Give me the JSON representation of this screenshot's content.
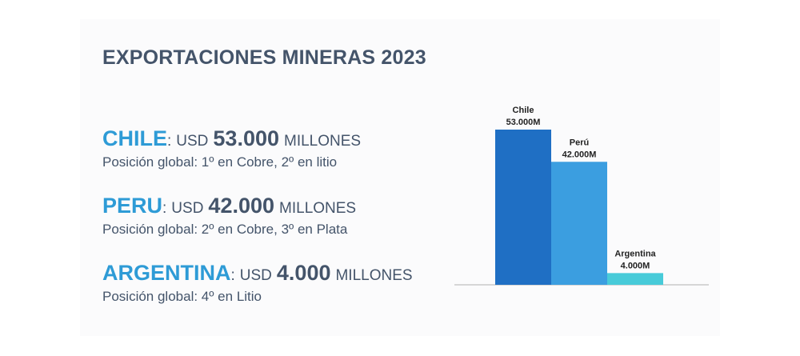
{
  "title": "EXPORTACIONES MINERAS 2023",
  "countries": [
    {
      "name": "CHILE",
      "colon": ":",
      "currency": "USD",
      "amount": "53.000",
      "unit": "MILLONES",
      "detail": "Posición global: 1º en Cobre, 2º en litio",
      "color": "#2e9bd6"
    },
    {
      "name": "PERU",
      "colon": ":",
      "currency": "USD",
      "amount": "42.000",
      "unit": "MILLONES",
      "detail": "Posición global: 2º en Cobre, 3º en Plata",
      "color": "#2e9bd6"
    },
    {
      "name": "ARGENTINA",
      "colon": ":",
      "currency": "USD",
      "amount": "4.000",
      "unit": "MILLONES",
      "detail": "Posición global: 4º en Litio",
      "color": "#2e9bd6"
    }
  ],
  "chart_data": {
    "type": "bar",
    "categories": [
      "Chile",
      "Perú",
      "Argentina"
    ],
    "values": [
      53000,
      42000,
      4000
    ],
    "data_labels": [
      "53.000M",
      "42.000M",
      "4.000M"
    ],
    "unit": "M",
    "ylim": [
      0,
      53000
    ],
    "grid": false,
    "legend": "none",
    "colors": [
      "#1f6fc4",
      "#3b9ee0",
      "#48cbd9"
    ]
  }
}
